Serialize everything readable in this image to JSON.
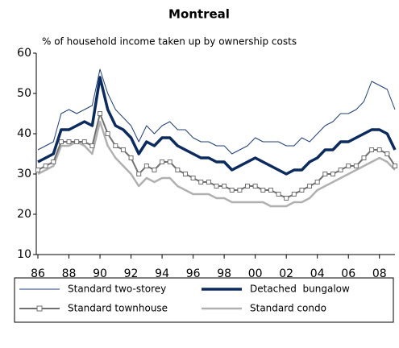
{
  "chart_data": {
    "type": "line",
    "title": "Montreal",
    "y_label": "% of household income taken up by ownership costs",
    "x": [
      1986,
      1986.5,
      1987,
      1987.5,
      1988,
      1988.5,
      1989,
      1989.5,
      1990,
      1990.5,
      1991,
      1991.5,
      1992,
      1992.5,
      1993,
      1993.5,
      1994,
      1994.5,
      1995,
      1995.5,
      1996,
      1996.5,
      1997,
      1997.5,
      1998,
      1998.5,
      1999,
      1999.5,
      2000,
      2000.5,
      2001,
      2001.5,
      2002,
      2002.5,
      2003,
      2003.5,
      2004,
      2004.5,
      2005,
      2005.5,
      2006,
      2006.5,
      2007,
      2007.5,
      2008,
      2008.5,
      2009
    ],
    "series": [
      {
        "name": "Standard two-storey",
        "color": "#1f3f7a",
        "width": 1,
        "values": [
          36,
          37,
          38,
          45,
          46,
          45,
          46,
          47,
          56,
          50,
          46,
          44,
          42,
          38,
          42,
          40,
          42,
          43,
          41,
          41,
          39,
          38,
          38,
          37,
          37,
          35,
          36,
          37,
          39,
          38,
          38,
          38,
          37,
          37,
          39,
          38,
          40,
          42,
          43,
          45,
          45,
          46,
          48,
          53,
          52,
          51,
          46
        ]
      },
      {
        "name": "Detached  bungalow",
        "color": "#0b2a5e",
        "width": 3.5,
        "values": [
          33,
          34,
          35,
          41,
          41,
          42,
          43,
          42,
          54,
          46,
          42,
          41,
          39,
          35,
          38,
          37,
          39,
          39,
          37,
          36,
          35,
          34,
          34,
          33,
          33,
          31,
          32,
          33,
          34,
          33,
          32,
          31,
          30,
          31,
          31,
          33,
          34,
          36,
          36,
          38,
          38,
          39,
          40,
          41,
          41,
          40,
          36
        ]
      },
      {
        "name": "Standard townhouse",
        "color": "#707070",
        "width": 2,
        "marker": "square",
        "values": [
          31,
          32,
          33,
          38,
          38,
          38,
          38,
          37,
          45,
          40,
          37,
          36,
          34,
          30,
          32,
          31,
          33,
          33,
          31,
          30,
          29,
          28,
          28,
          27,
          27,
          26,
          26,
          27,
          27,
          26,
          26,
          25,
          24,
          25,
          26,
          27,
          28,
          30,
          30,
          31,
          32,
          32,
          34,
          36,
          36,
          35,
          32
        ]
      },
      {
        "name": "Standard condo",
        "color": "#b0b0b0",
        "width": 2.5,
        "values": [
          30,
          31,
          32,
          37,
          37,
          38,
          37,
          35,
          43,
          37,
          34,
          32,
          30,
          27,
          29,
          28,
          29,
          29,
          27,
          26,
          25,
          25,
          25,
          24,
          24,
          23,
          23,
          23,
          23,
          23,
          22,
          22,
          22,
          23,
          23,
          24,
          26,
          27,
          28,
          29,
          30,
          31,
          32,
          33,
          34,
          33,
          31
        ]
      }
    ],
    "xlim": [
      1986,
      2009
    ],
    "xticks": [
      {
        "value": 1986,
        "label": "86"
      },
      {
        "value": 1988,
        "label": "88"
      },
      {
        "value": 1990,
        "label": "90"
      },
      {
        "value": 1992,
        "label": "92"
      },
      {
        "value": 1994,
        "label": "94"
      },
      {
        "value": 1996,
        "label": "96"
      },
      {
        "value": 1998,
        "label": "98"
      },
      {
        "value": 2000,
        "label": "00"
      },
      {
        "value": 2002,
        "label": "02"
      },
      {
        "value": 2004,
        "label": "04"
      },
      {
        "value": 2006,
        "label": "06"
      },
      {
        "value": 2008,
        "label": "08"
      }
    ],
    "ylim": [
      10,
      60
    ],
    "yticks": [
      10,
      20,
      30,
      40,
      50,
      60
    ],
    "grid": false,
    "legend": "bottom"
  }
}
